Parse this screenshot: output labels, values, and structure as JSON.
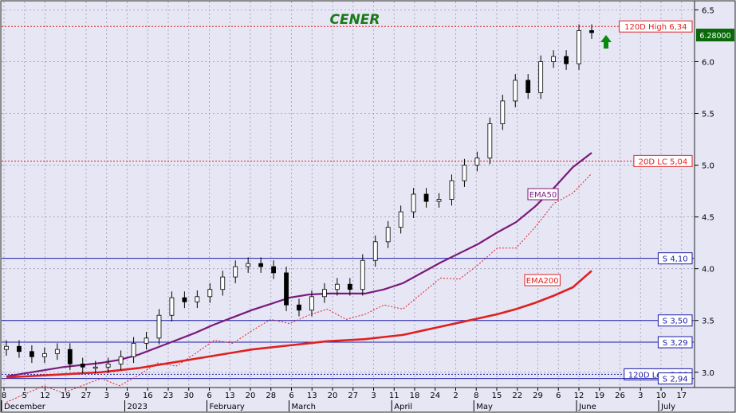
{
  "chart_data": {
    "type": "line",
    "title": "CENER",
    "ylim": [
      2.86,
      6.58
    ],
    "y_ticks": [
      "6.5",
      "6.0",
      "5.5",
      "5.0",
      "4.5",
      "4.0",
      "3.5",
      "3.0"
    ],
    "x_day_labels": [
      "8",
      "5",
      "12",
      "19",
      "27",
      "3",
      "9",
      "16",
      "23",
      "30",
      "6",
      "13",
      "20",
      "28",
      "6",
      "13",
      "20",
      "27",
      "3",
      "11",
      "18",
      "24",
      "2",
      "8",
      "15",
      "22",
      "29",
      "6",
      "12",
      "19",
      "26",
      "3",
      "10",
      "17"
    ],
    "x_month_labels": [
      "December",
      "2023",
      "February",
      "March",
      "April",
      "May",
      "June",
      "July"
    ],
    "last_price": "6.28000",
    "levels": [
      {
        "label": "120D High 6,34",
        "value": 6.34,
        "style": "dotted",
        "color": "#e02020",
        "label_color": "#e02020"
      },
      {
        "label": "20D LC 5,04",
        "value": 5.04,
        "style": "dotted",
        "color": "#e02020",
        "label_color": "#e02020"
      },
      {
        "label": "S 4,10",
        "value": 4.1,
        "style": "solid",
        "color": "#1a1aa8",
        "label_color": "#1a1aa8"
      },
      {
        "label": "S 3,50",
        "value": 3.5,
        "style": "solid",
        "color": "#1a1aa8",
        "label_color": "#1a1aa8"
      },
      {
        "label": "S 3,29",
        "value": 3.29,
        "style": "solid",
        "color": "#1a1aa8",
        "label_color": "#1a1aa8"
      },
      {
        "label": "120D Low 2,98",
        "value": 2.98,
        "style": "dotted",
        "color": "#1a1aa8",
        "label_color": "#1a1aa8"
      },
      {
        "label": "S 2,94",
        "value": 2.94,
        "style": "solid",
        "color": "#1a1aa8",
        "label_color": "#1a1aa8"
      }
    ],
    "series": [
      {
        "name": "EMA50",
        "color": "#7a1a7a",
        "values": [
          2.96,
          2.99,
          3.02,
          3.05,
          3.07,
          3.09,
          3.12,
          3.17,
          3.24,
          3.31,
          3.38,
          3.46,
          3.53,
          3.6,
          3.66,
          3.72,
          3.75,
          3.76,
          3.76,
          3.76,
          3.8,
          3.86,
          3.96,
          4.06,
          4.15,
          4.24,
          4.35,
          4.45,
          4.6,
          4.78,
          4.98,
          5.12
        ]
      },
      {
        "name": "EMA200",
        "color": "#e02020",
        "values": [
          2.95,
          2.96,
          2.97,
          2.98,
          2.99,
          3.0,
          3.02,
          3.04,
          3.07,
          3.1,
          3.13,
          3.16,
          3.19,
          3.22,
          3.24,
          3.26,
          3.28,
          3.3,
          3.31,
          3.32,
          3.34,
          3.36,
          3.4,
          3.44,
          3.48,
          3.52,
          3.56,
          3.61,
          3.67,
          3.74,
          3.82,
          3.98
        ]
      },
      {
        "name": "Close",
        "values": [
          3.25,
          3.2,
          3.15,
          3.18,
          3.22,
          3.08,
          3.05,
          3.05,
          3.08,
          3.15,
          3.28,
          3.33,
          3.55,
          3.72,
          3.68,
          3.73,
          3.8,
          3.92,
          4.02,
          4.05,
          4.02,
          3.96,
          3.65,
          3.6,
          3.73,
          3.8,
          3.85,
          3.8,
          4.08,
          4.26,
          4.4,
          4.55,
          4.72,
          4.65,
          4.67,
          4.85,
          5.0,
          5.07,
          5.4,
          5.62,
          5.82,
          5.7,
          6.0,
          6.05,
          5.98,
          6.3,
          6.28
        ]
      }
    ]
  }
}
